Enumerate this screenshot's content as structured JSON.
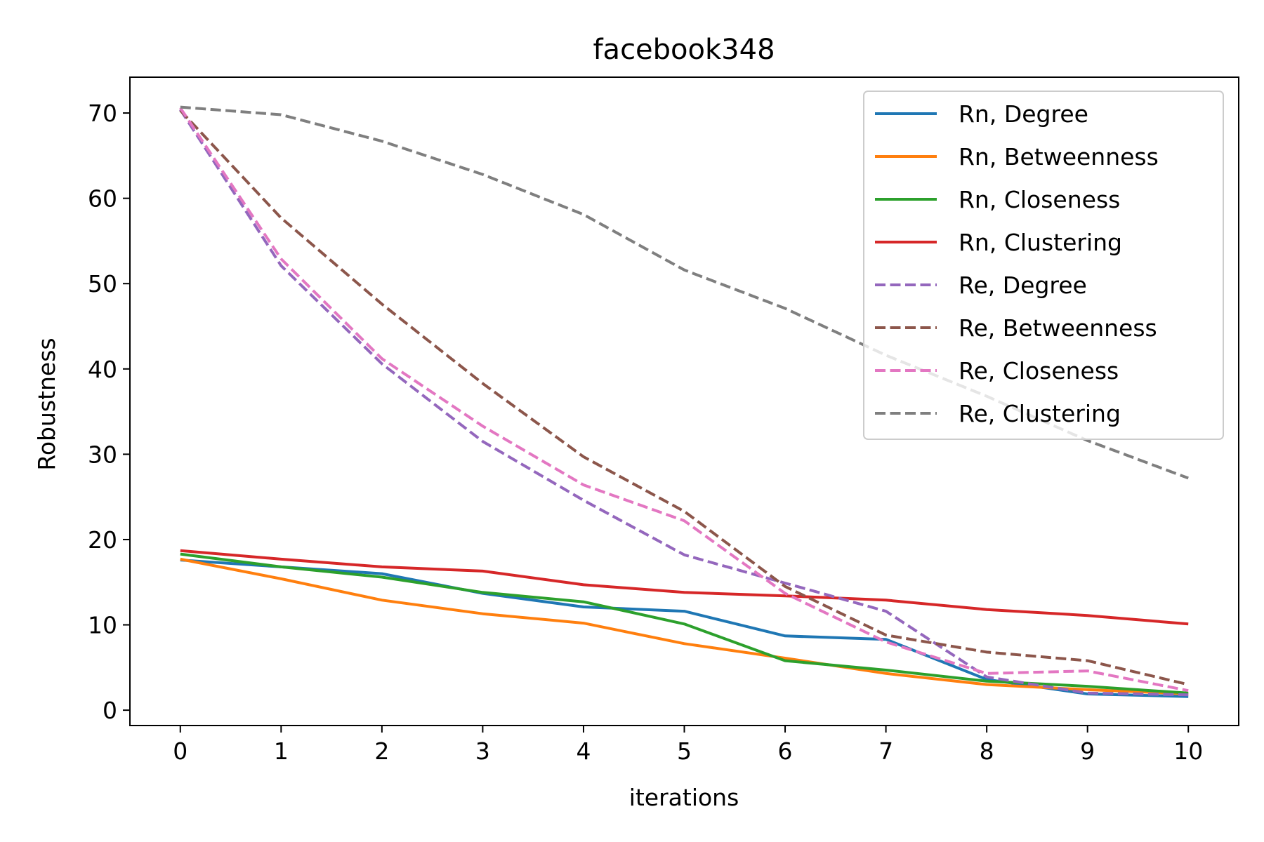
{
  "chart_data": {
    "type": "line",
    "title": "facebook348",
    "xlabel": "iterations",
    "ylabel": "Robustness",
    "xlim": [
      -0.5,
      10.5
    ],
    "ylim": [
      -1.8,
      74.2
    ],
    "xticks": [
      0,
      1,
      2,
      3,
      4,
      5,
      6,
      7,
      8,
      9,
      10
    ],
    "yticks": [
      0,
      10,
      20,
      30,
      40,
      50,
      60,
      70
    ],
    "grid": false,
    "legend_position": "top-right",
    "x": [
      0,
      1,
      2,
      3,
      4,
      5,
      6,
      7,
      8,
      9,
      10
    ],
    "series": [
      {
        "name": "Rn, Degree",
        "color": "#1f77b4",
        "dash": "solid",
        "values": [
          17.6,
          16.8,
          16.0,
          13.7,
          12.1,
          11.6,
          8.7,
          8.3,
          3.6,
          1.9,
          1.6
        ]
      },
      {
        "name": "Rn, Betweenness",
        "color": "#ff7f0e",
        "dash": "solid",
        "values": [
          17.7,
          15.4,
          12.9,
          11.3,
          10.2,
          7.8,
          6.1,
          4.3,
          3.0,
          2.4,
          1.9
        ]
      },
      {
        "name": "Rn, Closeness",
        "color": "#2ca02c",
        "dash": "solid",
        "values": [
          18.3,
          16.8,
          15.6,
          13.8,
          12.7,
          10.1,
          5.8,
          4.7,
          3.4,
          2.8,
          2.0
        ]
      },
      {
        "name": "Rn, Clustering",
        "color": "#d62728",
        "dash": "solid",
        "values": [
          18.7,
          17.7,
          16.8,
          16.3,
          14.7,
          13.8,
          13.4,
          12.9,
          11.8,
          11.1,
          10.1
        ]
      },
      {
        "name": "Re, Degree",
        "color": "#9467bd",
        "dash": "dashed",
        "values": [
          70.4,
          52.1,
          40.6,
          31.5,
          24.6,
          18.2,
          14.9,
          11.6,
          3.9,
          2.0,
          1.8
        ]
      },
      {
        "name": "Re, Betweenness",
        "color": "#8c564b",
        "dash": "dashed",
        "values": [
          70.3,
          57.7,
          47.6,
          38.3,
          29.7,
          23.3,
          14.5,
          8.8,
          6.8,
          5.8,
          3.0
        ]
      },
      {
        "name": "Re, Closeness",
        "color": "#e377c2",
        "dash": "dashed",
        "values": [
          70.6,
          52.9,
          41.2,
          33.3,
          26.4,
          22.2,
          13.7,
          8.0,
          4.3,
          4.6,
          2.3
        ]
      },
      {
        "name": "Re, Clustering",
        "color": "#7f7f7f",
        "dash": "dashed",
        "values": [
          70.7,
          69.8,
          66.7,
          62.8,
          58.1,
          51.6,
          47.1,
          41.6,
          36.8,
          31.6,
          27.2
        ]
      }
    ]
  }
}
